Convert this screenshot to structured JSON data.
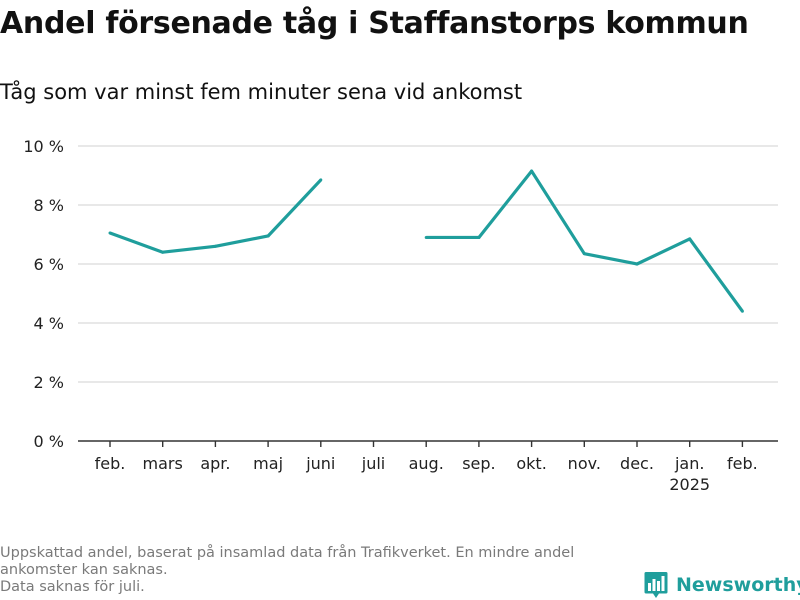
{
  "title": "Andel försenade tåg i Staffanstorps kommun",
  "subtitle": "Tåg som var minst fem minuter sena vid ankomst",
  "footnote": {
    "lines": [
      "Uppskattad andel, baserat på insamlad data från Trafikverket. En mindre andel",
      "ankomster kan saknas.",
      "Data saknas för juli."
    ]
  },
  "brand": {
    "name": "Newsworthy",
    "icon": "newsworthy-logo-icon"
  },
  "colors": {
    "line": "#1f9e9c",
    "grid": "#d9d9d9",
    "axis": "#333333"
  },
  "chart_data": {
    "type": "line",
    "categories": [
      "feb.",
      "mars",
      "apr.",
      "maj",
      "juni",
      "juli",
      "aug.",
      "sep.",
      "okt.",
      "nov.",
      "dec.",
      "jan.",
      "feb."
    ],
    "category_sublabels": [
      "",
      "",
      "",
      "",
      "",
      "",
      "",
      "",
      "",
      "",
      "",
      "2025",
      ""
    ],
    "series": [
      {
        "values": [
          7.05,
          6.4,
          6.6,
          6.95,
          8.85,
          null,
          6.9,
          6.9,
          9.15,
          6.35,
          6.0,
          6.85,
          4.4
        ]
      }
    ],
    "ylim": [
      0,
      10
    ],
    "yticks": [
      0,
      2,
      4,
      6,
      8,
      10
    ],
    "ytick_labels": [
      "0 %",
      "2 %",
      "4 %",
      "6 %",
      "8 %",
      "10 %"
    ],
    "grid": true,
    "xlabel": "",
    "ylabel": ""
  }
}
